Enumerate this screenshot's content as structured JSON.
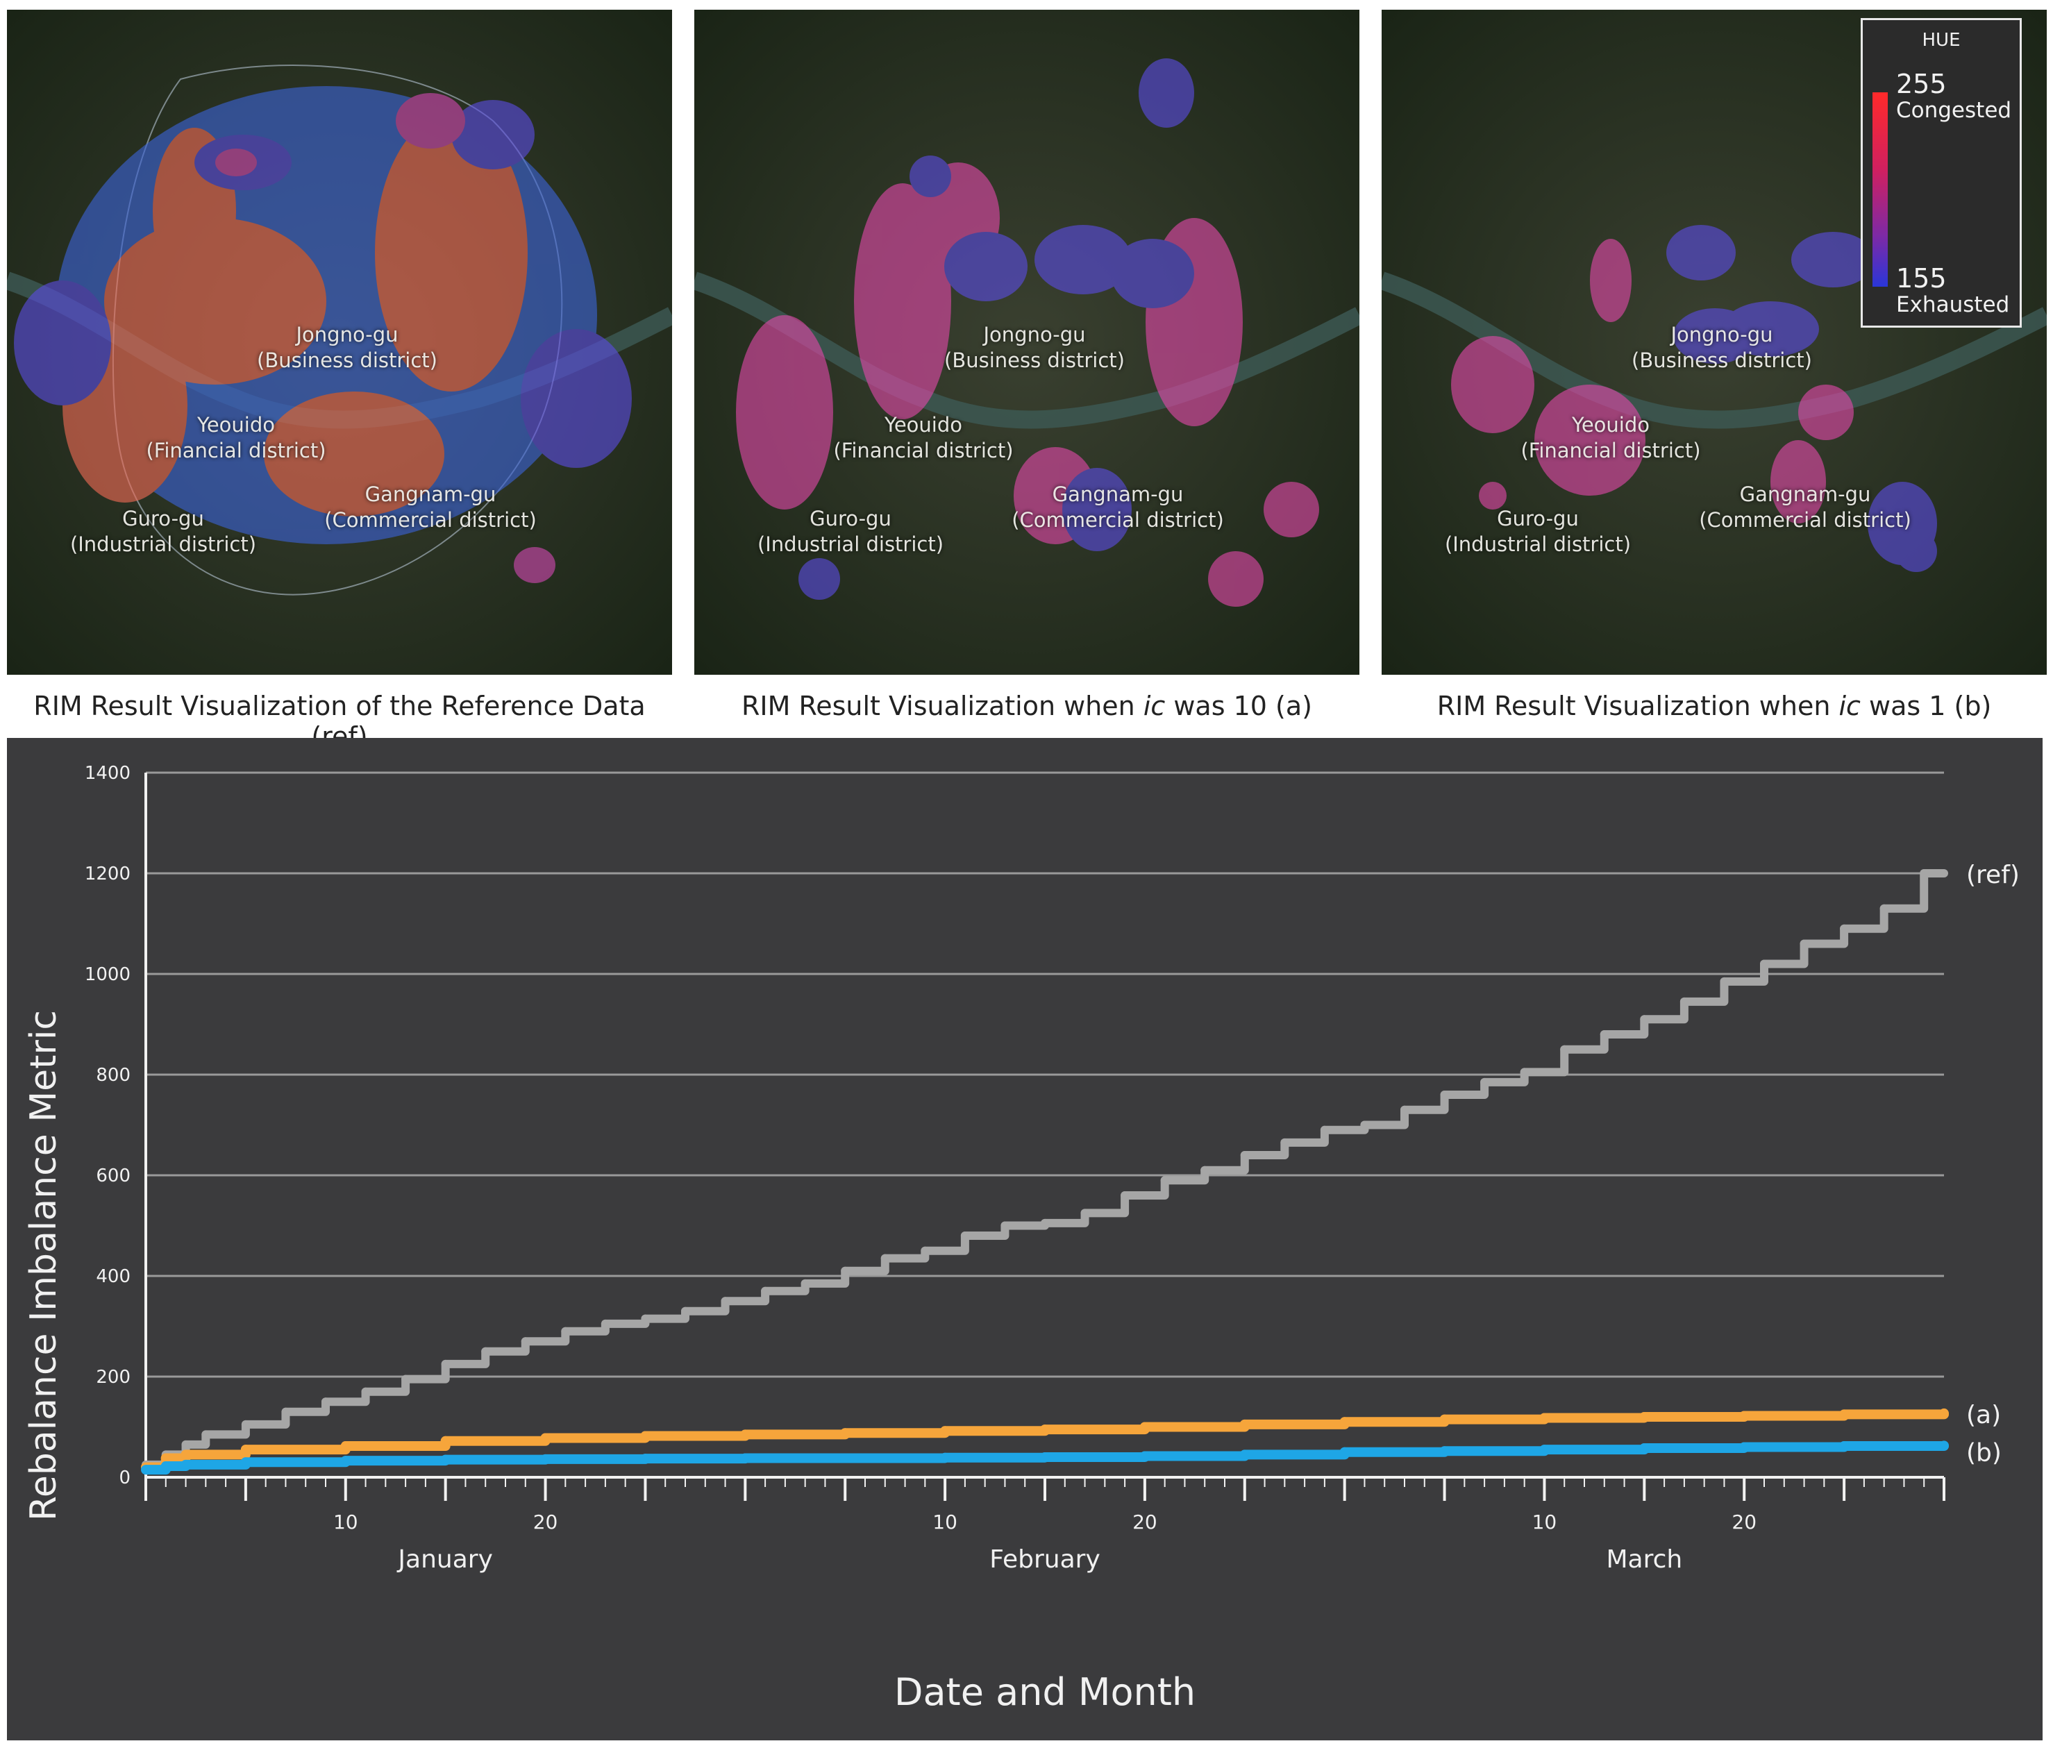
{
  "maps": [
    {
      "id": "ref",
      "caption": "RIM Result Visualization of the Reference Data (ref)",
      "districts": {
        "jongno": [
          "Jongno-gu",
          "(Business district)"
        ],
        "yeouido": [
          "Yeouido",
          "(Financial district)"
        ],
        "gangnam": [
          "Gangnam-gu",
          "(Commercial district)"
        ],
        "guro": [
          "Guro-gu",
          "(Industrial district)"
        ]
      }
    },
    {
      "id": "a",
      "caption": "RIM Result Visualization when ic was 10 (a)",
      "districts": {
        "jongno": [
          "Jongno-gu",
          "(Business district)"
        ],
        "yeouido": [
          "Yeouido",
          "(Financial district)"
        ],
        "gangnam": [
          "Gangnam-gu",
          "(Commercial district)"
        ],
        "guro": [
          "Guro-gu",
          "(Industrial district)"
        ]
      }
    },
    {
      "id": "b",
      "caption": "RIM Result Visualization when ic was 1 (b)",
      "districts": {
        "jongno": [
          "Jongno-gu",
          "(Business district)"
        ],
        "yeouido": [
          "Yeouido",
          "(Financial district)"
        ],
        "gangnam": [
          "Gangnam-gu",
          "(Commercial district)"
        ],
        "guro": [
          "Guro-gu",
          "(Industrial district)"
        ]
      }
    }
  ],
  "legend": {
    "title": "HUE",
    "max_value": "255",
    "max_label": "Congested",
    "min_value": "155",
    "min_label": "Exhausted",
    "color_max": "#ff2a2a",
    "color_min": "#2a36d8"
  },
  "colors": {
    "congested_fill": "#e8506a",
    "exhausted_fill": "#5a4ce0",
    "mid_fill": "#d048b0",
    "ref_line": "#a6a6a6",
    "a_line": "#f6a53b",
    "b_line": "#1ea6e6",
    "chart_bg": "#3b3b3d",
    "grid": "#9a9a9a"
  },
  "chart_data": {
    "type": "line",
    "title": "",
    "xlabel": "Date and Month",
    "ylabel": "Rebalance Imbalance Metric",
    "ylim": [
      0,
      1400
    ],
    "yticks": [
      0,
      200,
      400,
      600,
      800,
      1000,
      1200,
      1400
    ],
    "xlim": [
      1,
      91
    ],
    "x_day_ticks": [
      {
        "x": 11,
        "label": "10"
      },
      {
        "x": 21,
        "label": "20"
      },
      {
        "x": 41,
        "label": "10"
      },
      {
        "x": 51,
        "label": "20"
      },
      {
        "x": 71,
        "label": "10"
      },
      {
        "x": 81,
        "label": "20"
      }
    ],
    "x_month_labels": [
      {
        "x": 16,
        "label": "January"
      },
      {
        "x": 46,
        "label": "February"
      },
      {
        "x": 76,
        "label": "March"
      }
    ],
    "grid": true,
    "series": [
      {
        "name": "(ref)",
        "label": "(ref)",
        "x": [
          1,
          2,
          3,
          4,
          6,
          8,
          10,
          12,
          14,
          16,
          18,
          20,
          22,
          24,
          26,
          28,
          30,
          32,
          34,
          36,
          38,
          40,
          42,
          44,
          46,
          48,
          50,
          52,
          54,
          56,
          58,
          60,
          62,
          64,
          66,
          68,
          70,
          72,
          74,
          76,
          78,
          80,
          82,
          84,
          86,
          88,
          90,
          91
        ],
        "values": [
          25,
          45,
          65,
          85,
          105,
          130,
          150,
          170,
          195,
          225,
          250,
          270,
          290,
          305,
          315,
          330,
          350,
          370,
          385,
          410,
          435,
          450,
          480,
          500,
          505,
          525,
          560,
          590,
          610,
          640,
          665,
          690,
          700,
          730,
          760,
          785,
          805,
          850,
          880,
          910,
          945,
          985,
          1020,
          1060,
          1090,
          1130,
          1200,
          1200
        ]
      },
      {
        "name": "(a)",
        "label": "(a)",
        "x": [
          1,
          2,
          3,
          6,
          11,
          16,
          21,
          26,
          31,
          36,
          41,
          46,
          51,
          56,
          61,
          66,
          71,
          76,
          81,
          86,
          91
        ],
        "values": [
          20,
          38,
          45,
          55,
          62,
          72,
          78,
          82,
          85,
          88,
          92,
          95,
          100,
          105,
          110,
          115,
          118,
          120,
          122,
          125,
          127
        ]
      },
      {
        "name": "(b)",
        "label": "(b)",
        "x": [
          1,
          2,
          3,
          6,
          11,
          16,
          21,
          26,
          31,
          36,
          41,
          46,
          51,
          56,
          61,
          66,
          71,
          76,
          81,
          86,
          91
        ],
        "values": [
          15,
          22,
          25,
          30,
          33,
          35,
          36,
          37,
          38,
          38,
          39,
          40,
          42,
          45,
          50,
          52,
          55,
          58,
          60,
          62,
          63
        ]
      }
    ]
  }
}
